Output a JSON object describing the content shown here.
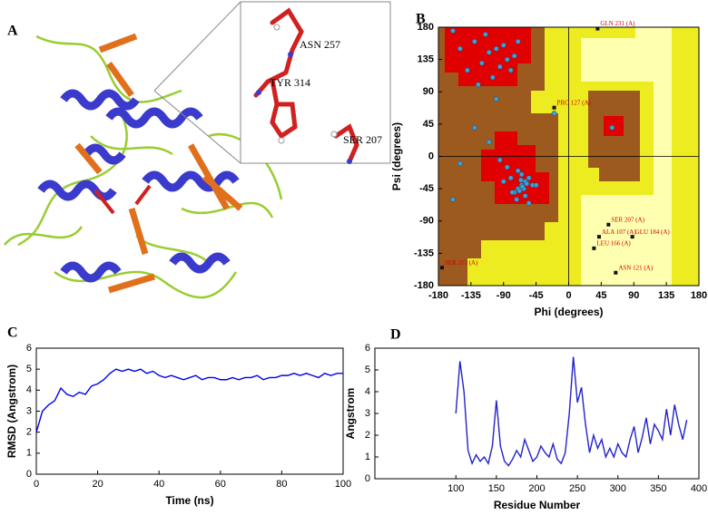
{
  "structure_view": {
    "panel_label": "A",
    "residue_labels": [
      "ASN 257",
      "TYR 314",
      "SER 207"
    ]
  },
  "chart_data": [
    {
      "type": "scatter",
      "panel_label": "B",
      "x_label": "Phi (degrees)",
      "y_label": "Psi (degrees)",
      "xlim": [
        -180,
        180
      ],
      "ylim": [
        -180,
        180
      ],
      "xticks": [
        -180,
        -135,
        -90,
        -45,
        0,
        45,
        90,
        135,
        180
      ],
      "yticks": [
        -180,
        -135,
        -90,
        -45,
        0,
        45,
        90,
        135,
        180
      ],
      "color": "#3aa0d8",
      "x": [
        -120,
        -110,
        -100,
        -95,
        -130,
        -140,
        -85,
        -75,
        -105,
        -125,
        -115,
        -90,
        -150,
        -160,
        -70,
        -80,
        -100,
        -65,
        -60,
        -70,
        -55,
        -75,
        -65,
        -50,
        -60,
        -80,
        -70,
        -62,
        -58,
        -68,
        -72,
        -85,
        -90,
        -55,
        -45,
        -64,
        -66,
        -78,
        -95,
        -110,
        -130,
        -150,
        -160,
        60,
        -20
      ],
      "values": [
        130,
        145,
        150,
        125,
        160,
        120,
        135,
        140,
        110,
        100,
        170,
        155,
        150,
        175,
        160,
        120,
        80,
        -40,
        -35,
        -45,
        -30,
        -50,
        -25,
        -40,
        -55,
        -30,
        -20,
        -45,
        -38,
        -48,
        -60,
        -15,
        -35,
        -65,
        -40,
        -42,
        -33,
        -50,
        -5,
        20,
        40,
        -10,
        -60,
        40,
        60
      ],
      "annotations": [
        {
          "text": "GLN 231 (A)",
          "x": 40,
          "y": 178
        },
        {
          "text": "PRO 127 (A)",
          "x": -20,
          "y": 68
        },
        {
          "text": "SER 207 (A)",
          "x": 55,
          "y": -95
        },
        {
          "text": "GLU 184 (A)",
          "x": 88,
          "y": -112
        },
        {
          "text": "ALA 107 (A)",
          "x": 42,
          "y": -112
        },
        {
          "text": "LEU 166 (A)",
          "x": 35,
          "y": -128
        },
        {
          "text": "ASN 121 (A)",
          "x": 65,
          "y": -162
        },
        {
          "text": "SER 211 (A)",
          "x": -175,
          "y": -155
        }
      ]
    },
    {
      "type": "line",
      "panel_label": "C",
      "x_label": "Time (ns)",
      "y_label": "RMSD (Angstrom)",
      "xlim": [
        0,
        100
      ],
      "ylim": [
        0,
        6
      ],
      "xticks": [
        0,
        20,
        40,
        60,
        80,
        100
      ],
      "yticks": [
        0,
        1,
        2,
        3,
        4,
        5,
        6
      ],
      "color": "#0000ee",
      "x": [
        0,
        2,
        4,
        6,
        8,
        10,
        12,
        14,
        16,
        18,
        20,
        22,
        24,
        26,
        28,
        30,
        32,
        34,
        36,
        38,
        40,
        42,
        44,
        46,
        48,
        50,
        52,
        54,
        56,
        58,
        60,
        62,
        64,
        66,
        68,
        70,
        72,
        74,
        76,
        78,
        80,
        82,
        84,
        86,
        88,
        90,
        92,
        94,
        96,
        98,
        100
      ],
      "values": [
        2.0,
        3.0,
        3.3,
        3.5,
        4.1,
        3.8,
        3.7,
        3.9,
        3.8,
        4.2,
        4.3,
        4.5,
        4.8,
        5.0,
        4.9,
        5.0,
        4.9,
        5.0,
        4.8,
        4.9,
        4.7,
        4.6,
        4.7,
        4.6,
        4.5,
        4.6,
        4.7,
        4.5,
        4.6,
        4.6,
        4.5,
        4.5,
        4.6,
        4.5,
        4.6,
        4.6,
        4.7,
        4.5,
        4.6,
        4.6,
        4.7,
        4.7,
        4.8,
        4.7,
        4.8,
        4.7,
        4.6,
        4.8,
        4.7,
        4.8,
        4.8
      ]
    },
    {
      "type": "line",
      "panel_label": "D",
      "x_label": "Residue Number",
      "y_label": "Angstrom",
      "xlim": [
        0,
        400
      ],
      "ylim": [
        0,
        6
      ],
      "xticks": [
        100,
        150,
        200,
        250,
        300,
        350,
        400
      ],
      "yticks": [
        0,
        1,
        2,
        3,
        4,
        5,
        6
      ],
      "color": "#2222cc",
      "x": [
        100,
        105,
        110,
        115,
        120,
        125,
        130,
        135,
        140,
        145,
        150,
        155,
        160,
        165,
        170,
        175,
        180,
        185,
        190,
        195,
        200,
        205,
        210,
        215,
        220,
        225,
        230,
        235,
        240,
        245,
        250,
        255,
        260,
        265,
        270,
        275,
        280,
        285,
        290,
        295,
        300,
        305,
        310,
        315,
        320,
        325,
        330,
        335,
        340,
        345,
        350,
        355,
        360,
        365,
        370,
        375,
        380,
        385
      ],
      "values": [
        3.0,
        5.4,
        4.0,
        1.3,
        0.7,
        1.1,
        0.8,
        1.0,
        0.7,
        1.5,
        3.6,
        1.5,
        0.8,
        0.6,
        0.9,
        1.3,
        1.0,
        1.8,
        1.3,
        0.8,
        1.0,
        1.5,
        1.2,
        1.0,
        1.6,
        0.9,
        0.7,
        1.2,
        3.0,
        5.6,
        3.5,
        4.2,
        2.5,
        1.2,
        2.0,
        1.4,
        1.8,
        1.0,
        1.4,
        1.0,
        1.6,
        1.2,
        1.0,
        1.8,
        2.4,
        1.2,
        1.9,
        2.8,
        1.6,
        2.5,
        2.2,
        1.8,
        3.2,
        2.0,
        3.4,
        2.5,
        1.8,
        2.7
      ]
    }
  ]
}
